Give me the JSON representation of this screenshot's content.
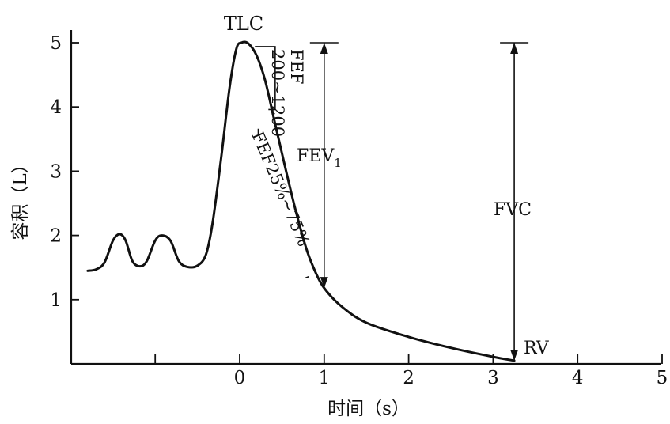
{
  "chart_data": {
    "type": "line",
    "xlabel": "时间（s）",
    "ylabel": "容积（L）",
    "xlim": [
      -2,
      5
    ],
    "ylim": [
      0,
      5
    ],
    "x_ticks": [
      0,
      1,
      2,
      3,
      4,
      5
    ],
    "y_ticks": [
      1,
      2,
      3,
      4,
      5
    ],
    "grid": false,
    "series": [
      {
        "points": [
          [
            -1.8,
            1.45
          ],
          [
            -1.7,
            1.47
          ],
          [
            -1.6,
            1.58
          ],
          [
            -1.5,
            1.92
          ],
          [
            -1.42,
            2.02
          ],
          [
            -1.35,
            1.92
          ],
          [
            -1.27,
            1.6
          ],
          [
            -1.18,
            1.52
          ],
          [
            -1.1,
            1.6
          ],
          [
            -1.0,
            1.92
          ],
          [
            -0.92,
            2.0
          ],
          [
            -0.82,
            1.92
          ],
          [
            -0.72,
            1.6
          ],
          [
            -0.62,
            1.51
          ],
          [
            -0.5,
            1.53
          ],
          [
            -0.4,
            1.7
          ],
          [
            -0.32,
            2.2
          ],
          [
            -0.22,
            3.2
          ],
          [
            -0.12,
            4.3
          ],
          [
            -0.04,
            4.9
          ],
          [
            0.02,
            5.0
          ],
          [
            0.1,
            4.99
          ],
          [
            0.2,
            4.8
          ],
          [
            0.3,
            4.42
          ],
          [
            0.4,
            3.85
          ],
          [
            0.5,
            3.28
          ],
          [
            0.6,
            2.72
          ],
          [
            0.7,
            2.2
          ],
          [
            0.8,
            1.75
          ],
          [
            0.9,
            1.42
          ],
          [
            1.0,
            1.18
          ],
          [
            1.2,
            0.9
          ],
          [
            1.5,
            0.64
          ],
          [
            2.0,
            0.42
          ],
          [
            2.5,
            0.25
          ],
          [
            3.0,
            0.11
          ],
          [
            3.25,
            0.05
          ]
        ]
      }
    ],
    "annotations": {
      "tlc": "TLC",
      "rv": "RV",
      "fev1_base": "FEV",
      "fev1_sub": "1",
      "fvc": "FVC",
      "fef_line1": "FEF",
      "fef_line2": "200~1200",
      "fef2575": "FEF25%~75%"
    },
    "measure": {
      "fev1_top": 5.0,
      "fev1_bottom": 1.18,
      "fev1_x": 1.0,
      "fvc_top": 5.0,
      "fvc_bottom": 0.05,
      "fvc_x": 3.25
    }
  }
}
